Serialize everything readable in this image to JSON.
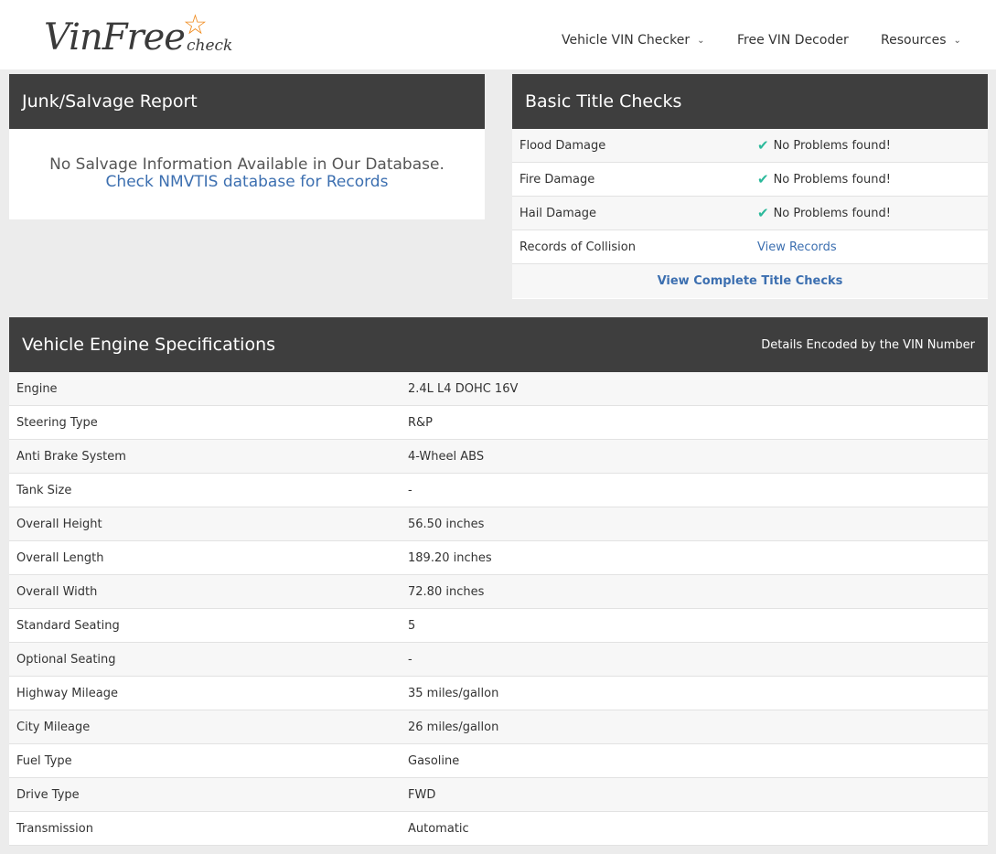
{
  "header": {
    "logo_main": "VinFree",
    "logo_sub": "check",
    "nav": [
      {
        "label": "Vehicle VIN Checker",
        "dropdown": true
      },
      {
        "label": "Free VIN Decoder",
        "dropdown": false
      },
      {
        "label": "Resources",
        "dropdown": true
      }
    ]
  },
  "salvage": {
    "title": "Junk/Salvage Report",
    "message": "No Salvage Information Available in Our Database.",
    "link": "Check NMVTIS database for Records"
  },
  "title_checks": {
    "title": "Basic Title Checks",
    "rows": [
      {
        "label": "Flood Damage",
        "value": "No Problems found!",
        "ok": true
      },
      {
        "label": "Fire Damage",
        "value": "No Problems found!",
        "ok": true
      },
      {
        "label": "Hail Damage",
        "value": "No Problems found!",
        "ok": true
      },
      {
        "label": "Records of Collision",
        "value": "View Records",
        "ok": false
      }
    ],
    "footer_link": "View Complete Title Checks"
  },
  "engine": {
    "title": "Vehicle Engine Specifications",
    "subtitle": "Details Encoded by the VIN Number",
    "rows": [
      {
        "label": "Engine",
        "value": "2.4L L4 DOHC 16V"
      },
      {
        "label": "Steering Type",
        "value": "R&P"
      },
      {
        "label": "Anti Brake System",
        "value": "4-Wheel ABS"
      },
      {
        "label": "Tank Size",
        "value": "-"
      },
      {
        "label": "Overall Height",
        "value": "56.50 inches"
      },
      {
        "label": "Overall Length",
        "value": "189.20 inches"
      },
      {
        "label": "Overall Width",
        "value": "72.80 inches"
      },
      {
        "label": "Standard Seating",
        "value": "5"
      },
      {
        "label": "Optional Seating",
        "value": "-"
      },
      {
        "label": "Highway Mileage",
        "value": "35 miles/gallon"
      },
      {
        "label": "City Mileage",
        "value": "26 miles/gallon"
      },
      {
        "label": "Fuel Type",
        "value": "Gasoline"
      },
      {
        "label": "Drive Type",
        "value": "FWD"
      },
      {
        "label": "Transmission",
        "value": "Automatic"
      }
    ]
  },
  "colors": {
    "header_bg": "#3e3e3e",
    "link": "#3c6fb0",
    "check": "#2bb99b",
    "logo_star": "#f08a1c"
  }
}
